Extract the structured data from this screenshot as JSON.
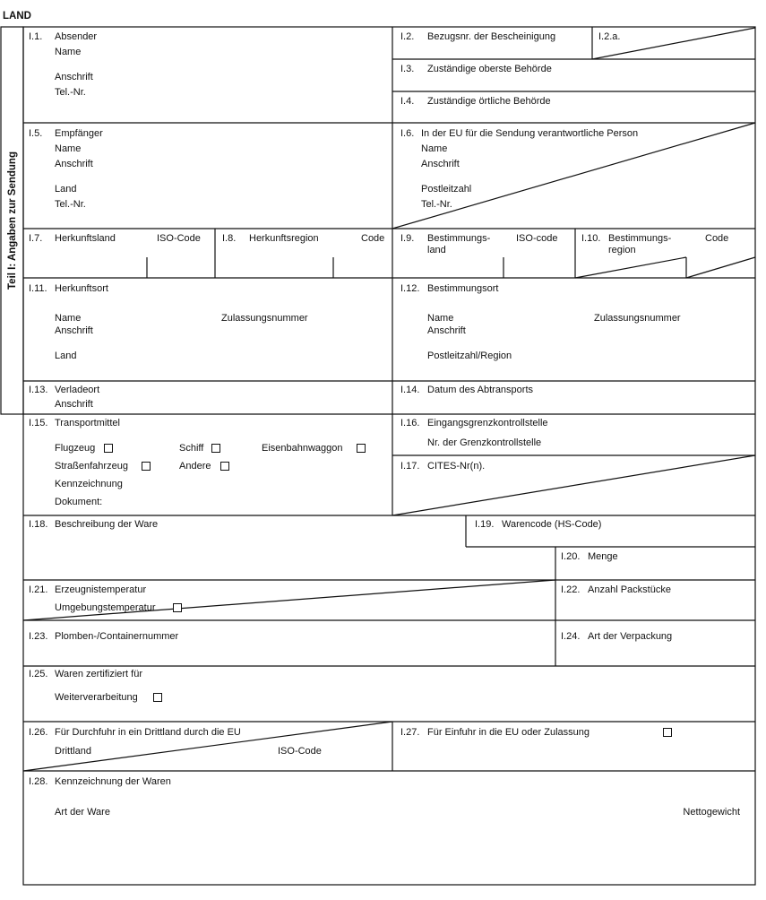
{
  "header": {
    "country": "LAND",
    "part_title": "Teil I: Angaben zur Sendung"
  },
  "i1": {
    "num": "I.1.",
    "label": "Absender",
    "name": "Name",
    "address": "Anschrift",
    "tel": "Tel.-Nr."
  },
  "i2": {
    "num": "I.2.",
    "label": "Bezugsnr. der Bescheinigung"
  },
  "i2a": {
    "num": "I.2.a."
  },
  "i3": {
    "num": "I.3.",
    "label": "Zuständige oberste Behörde"
  },
  "i4": {
    "num": "I.4.",
    "label": "Zuständige örtliche Behörde"
  },
  "i5": {
    "num": "I.5.",
    "label": "Empfänger",
    "name": "Name",
    "address": "Anschrift",
    "country": "Land",
    "tel": "Tel.-Nr."
  },
  "i6": {
    "num": "I.6.",
    "label": "In der EU für die Sendung verantwortliche Person",
    "name": "Name",
    "address": "Anschrift",
    "postcode": "Postleitzahl",
    "tel": "Tel.-Nr."
  },
  "i7": {
    "num": "I.7.",
    "label": "Herkunftsland",
    "code": "ISO-Code"
  },
  "i8": {
    "num": "I.8.",
    "label": "Herkunftsregion",
    "code": "Code"
  },
  "i9": {
    "num": "I.9.",
    "label1": "Bestimmungs-",
    "label2": "land",
    "code": "ISO-code"
  },
  "i10": {
    "num": "I.10.",
    "label1": "Bestimmungs-",
    "label2": "region",
    "code": "Code"
  },
  "i11": {
    "num": "I.11.",
    "label": "Herkunftsort",
    "name": "Name",
    "approval": "Zulassungsnummer",
    "address": "Anschrift",
    "country": "Land"
  },
  "i12": {
    "num": "I.12.",
    "label": "Bestimmungsort",
    "name": "Name",
    "approval": "Zulassungsnummer",
    "address": "Anschrift",
    "postcode": "Postleitzahl/Region"
  },
  "i13": {
    "num": "I.13.",
    "label": "Verladeort",
    "address": "Anschrift"
  },
  "i14": {
    "num": "I.14.",
    "label": "Datum des Abtransports"
  },
  "i15": {
    "num": "I.15.",
    "label": "Transportmittel",
    "options": [
      "Flugzeug",
      "Schiff",
      "Eisenbahnwaggon",
      "Straßenfahrzeug",
      "Andere"
    ],
    "identification": "Kennzeichnung",
    "document": "Dokument:"
  },
  "i16": {
    "num": "I.16.",
    "label": "Eingangsgrenzkontrollstelle",
    "sub": "Nr. der Grenzkontrollstelle"
  },
  "i17": {
    "num": "I.17.",
    "label": "CITES-Nr(n)."
  },
  "i18": {
    "num": "I.18.",
    "label": "Beschreibung der Ware"
  },
  "i19": {
    "num": "I.19.",
    "label": "Warencode (HS-Code)"
  },
  "i20": {
    "num": "I.20.",
    "label": "Menge"
  },
  "i21": {
    "num": "I.21.",
    "label": "Erzeugnistemperatur",
    "ambient": "Umgebungstemperatur"
  },
  "i22": {
    "num": "I.22.",
    "label": "Anzahl Packstücke"
  },
  "i23": {
    "num": "I.23.",
    "label": "Plomben-/Containernummer"
  },
  "i24": {
    "num": "I.24.",
    "label": "Art der Verpackung"
  },
  "i25": {
    "num": "I.25.",
    "label": "Waren zertifiziert für",
    "option": "Weiterverarbeitung"
  },
  "i26": {
    "num": "I.26.",
    "label": "Für Durchfuhr in ein Drittland durch die EU",
    "country": "Drittland",
    "code": "ISO-Code"
  },
  "i27": {
    "num": "I.27.",
    "label": "Für Einfuhr in die EU oder Zulassung"
  },
  "i28": {
    "num": "I.28.",
    "label": "Kennzeichnung der Waren",
    "type": "Art der Ware",
    "weight": "Nettogewicht"
  }
}
